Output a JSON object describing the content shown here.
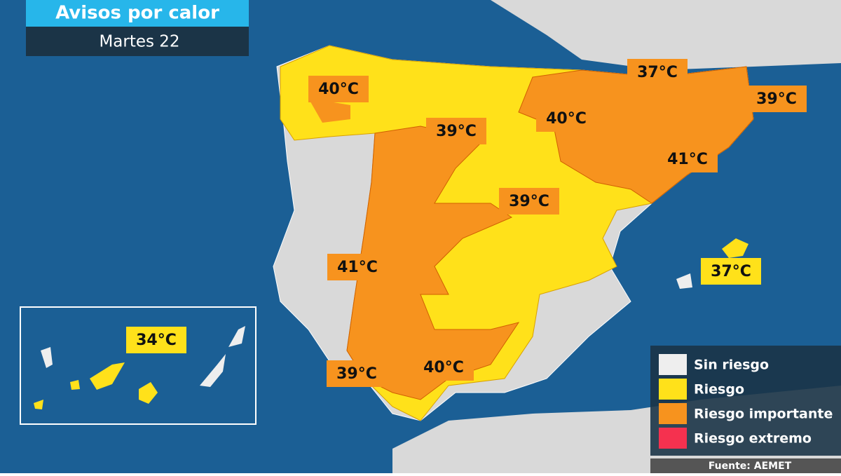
{
  "header": {
    "title": "Avisos por calor",
    "subtitle": "Martes 22"
  },
  "labels": [
    {
      "text": "40°C",
      "color": "#f7931e"
    },
    {
      "text": "37°C",
      "color": "#f7931e"
    },
    {
      "text": "39°C",
      "color": "#f7931e"
    },
    {
      "text": "40°C",
      "color": "#f7931e"
    },
    {
      "text": "39°C",
      "color": "#f7931e"
    },
    {
      "text": "41°C",
      "color": "#f7931e"
    },
    {
      "text": "39°C",
      "color": "#f7931e"
    },
    {
      "text": "37°C",
      "color": "#ffe11a"
    },
    {
      "text": "41°C",
      "color": "#f7931e"
    },
    {
      "text": "34°C",
      "color": "#ffe11a"
    },
    {
      "text": "39°C",
      "color": "#f7931e"
    },
    {
      "text": "40°C",
      "color": "#f7931e"
    }
  ],
  "legend": [
    {
      "label": "Sin riesgo",
      "color": "#eeeeee"
    },
    {
      "label": "Riesgo",
      "color": "#ffe11a"
    },
    {
      "label": "Riesgo importante",
      "color": "#f7931e"
    },
    {
      "label": "Riesgo extremo",
      "color": "#f5314f"
    }
  ],
  "source": "Fuente: AEMET"
}
